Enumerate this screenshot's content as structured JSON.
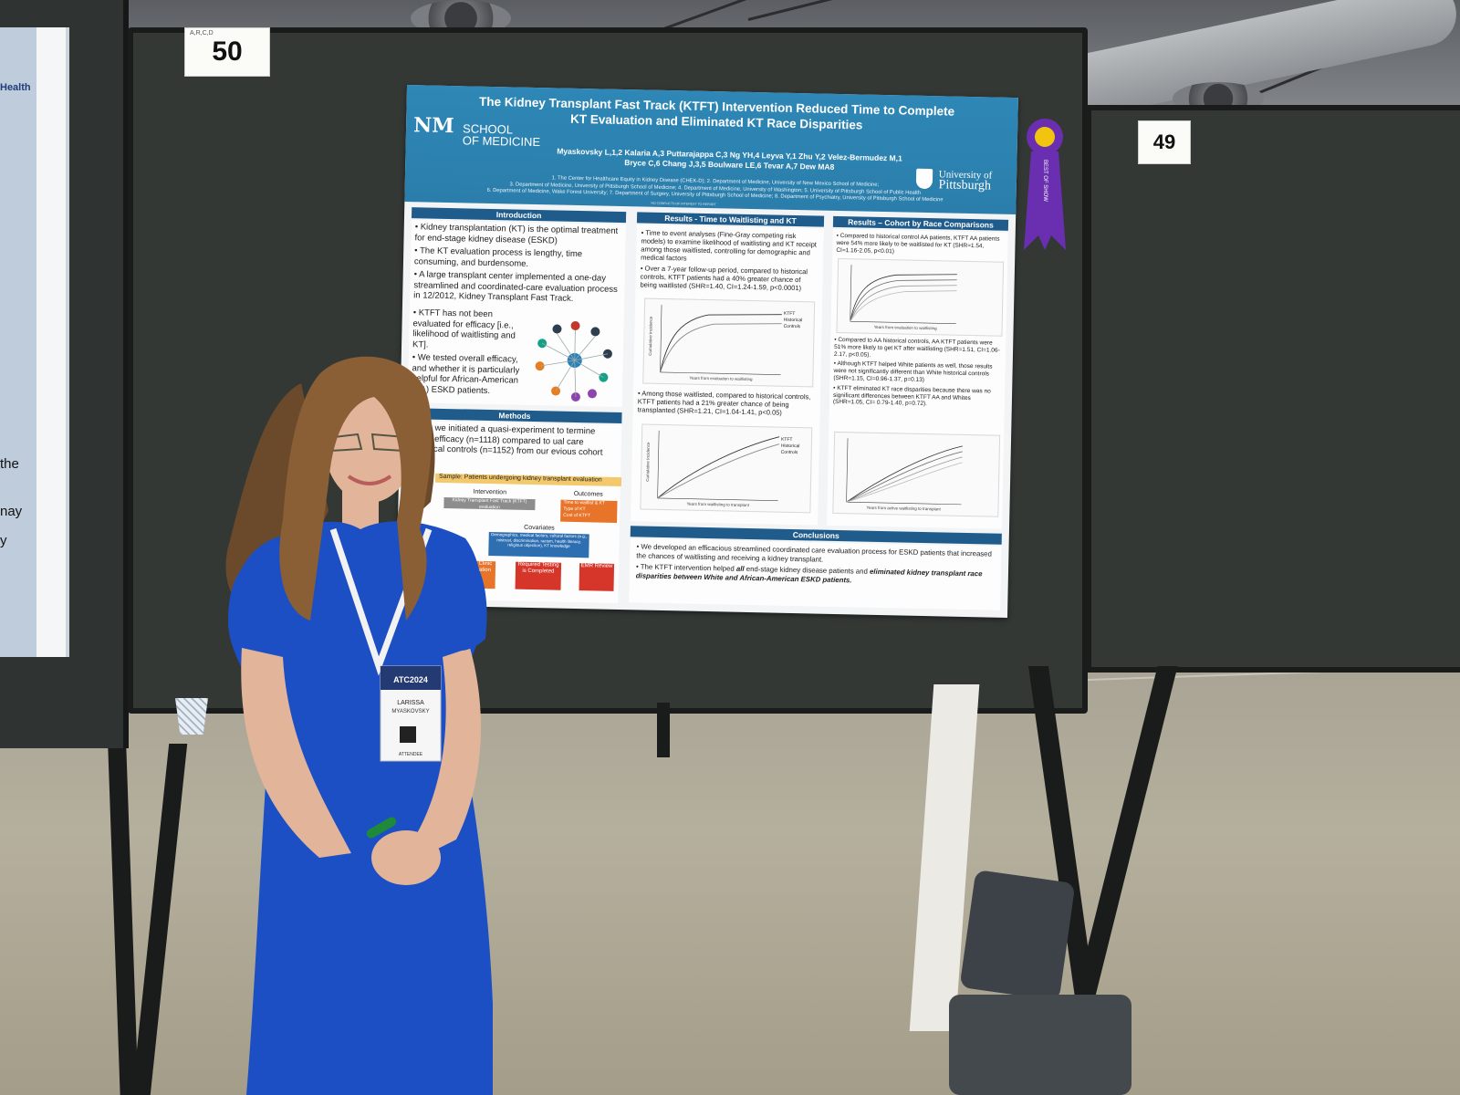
{
  "board_numbers": {
    "main": "50",
    "main_code": "A,R,C,D",
    "right": "49"
  },
  "left_poster": {
    "header": "Health",
    "fragments": [
      "the",
      "nay",
      "y"
    ]
  },
  "poster": {
    "title_line1": "The Kidney Transplant Fast Track (KTFT) Intervention Reduced Time to Complete",
    "title_line2": "KT Evaluation and Eliminated KT Race Disparities",
    "authors_line1": "Myaskovsky L,1,2 Kalaria A,3 Puttarajappa C,3 Ng YH,4 Leyva Y,1 Zhu Y,2 Velez-Bermudez M,1",
    "authors_line2": "Bryce C,6 Chang J,3,5 Boulware LE,6 Tevar A,7 Dew MA8",
    "affiliations_line1": "1. The Center for Healthcare Equity in Kidney Disease (CHEK-D); 2. Department of Medicine, University of New Mexico School of Medicine;",
    "affiliations_line2": "3. Department of Medicine, University of Pittsburgh School of Medicine; 4. Department of Medicine, University of Washington; 5. University of Pittsburgh School of Public Health",
    "affiliations_line3": "6. Department of Medicine, Wake Forest University; 7. Department of Surgery, University of Pittsburgh School of Medicine; 8. Department of Psychiatry, University of Pittsburgh School of Medicine",
    "coi": "NO CONFLICTS OF INTEREST TO REPORT",
    "logo_left_mark": "NM",
    "logo_left_line1": "SCHOOL",
    "logo_left_line2": "OF MEDICINE",
    "logo_right_line1": "University of",
    "logo_right_line2": "Pittsburgh",
    "introduction": {
      "heading": "Introduction",
      "bullets": [
        "Kidney transplantation (KT) is the optimal treatment for end-stage kidney disease (ESKD)",
        "The KT evaluation process is lengthy, time consuming, and burdensome.",
        "A large transplant center implemented a one-day streamlined and coordinated-care evaluation process in 12/2012, Kidney Transplant Fast Track.",
        "KTFT has not been evaluated for efficacy [i.e., likelihood of waitlisting and KT].",
        "We tested overall efficacy, and whether it is particularly helpful for African-American (AA) ESKD patients."
      ]
    },
    "methods": {
      "heading": "Methods",
      "text": "2015, we initiated a quasi-experiment to termine KTFT efficacy (n=1118) compared to ual care historical controls (n=1152) from our evious cohort study.",
      "sample": "Sample: Patients undergoing kidney transplant evaluation",
      "intervention_label": "Intervention",
      "intervention_text": "Kidney Transplant Fast Track (KTFT) evaluation",
      "outcomes_label": "Outcomes",
      "outcomes_items": [
        "Time to waitlist & KT",
        "Type of KT",
        "Cost of KTFT"
      ],
      "covariates_label": "Covariates",
      "covariates_text": "Demographics, medical factors, cultural factors (e.g., mistrust, discrimination, racism, health literacy, religious objection), KT knowledge",
      "flow": [
        "Initial Clinic Evaluation",
        "Required Testing is Completed",
        "EMR Review"
      ]
    },
    "results_waitlisting": {
      "heading": "Results - Time to Waitlisting and KT",
      "bullet1": "Time to event analyses (Fine-Gray competing risk models) to examine likelihood of waitlisting and KT receipt among those waitlisted, controlling for demographic and medical factors",
      "bullet2": "Over a 7-year follow-up period, compared to historical controls, KTFT patients had a 40% greater chance of being waitlisted (SHR=1.40, CI=1.24-1.59, p<0.0001)",
      "bullet3": "Among those waitlisted, compared to historical controls, KTFT patients had a 21% greater chance of being transplanted (SHR=1.21, CI=1.04-1.41, p<0.05)",
      "plot1_x": "Years from evaluation to waitlisting",
      "plot2_x": "Years from waitlisting to transplant",
      "plot_y": "Cumulative Incidence",
      "legend_ktft": "KTFT",
      "legend_hist": "Historical Controls"
    },
    "results_race": {
      "heading": "Results – Cohort by Race Comparisons",
      "bullet1": "Compared to historical control AA patients, KTFT AA patients were 54% more likely to be waitlisted for KT (SHR=1.54, CI=1.16-2.05, p<0.01)",
      "bullet2": "Compared to AA historical controls, AA KTFT patients were 51% more likely to get KT after waitlisting (SHR=1.51, CI=1.06-2.17, p<0.05).",
      "bullet3": "Although KTFT helped White patients as well, those results were not significantly different than White historical controls (SHR=1.15, CI=0.96-1.37, p=0.13)",
      "bullet4": "KTFT eliminated KT race disparities because there was no significant differences between KTFT AA and Whites (SHR=1.05, CI= 0.79-1.40, p=0.72).",
      "plot1_x": "Years from evaluation to waitlisting",
      "plot2_x": "Years from active waitlisting to transplant"
    },
    "conclusions": {
      "heading": "Conclusions",
      "bullet1": "We developed an efficacious streamlined coordinated care evaluation process for ESKD patients that increased the chances of waitlisting and receiving a kidney transplant.",
      "bullet2_a": "The KTFT intervention helped ",
      "bullet2_b": "all",
      "bullet2_c": " end-stage kidney disease patients and ",
      "bullet2_d": "eliminated kidney transplant race disparities between White and African-American ESKD patients."
    }
  },
  "ribbon": {
    "text": "BEST OF SHOW",
    "color": "#6a2fb0"
  },
  "badge": {
    "event": "ATC2024",
    "name_first": "LARISSA",
    "name_last": "MYASKOVSKY",
    "status": "ATTENDEE"
  },
  "colors": {
    "poster_header": "#2e87b6",
    "section_heading": "#1f5c8c",
    "board": "#333835",
    "dress": "#1d4fc4",
    "flow_orange": "#e8742a",
    "flow_red": "#d6362a"
  }
}
